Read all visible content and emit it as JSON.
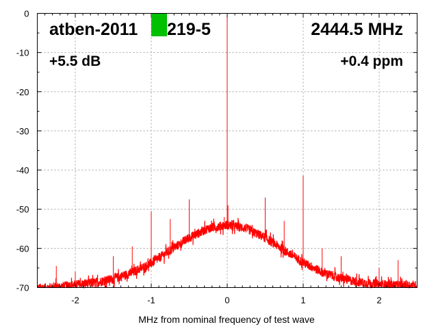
{
  "chart_data": {
    "type": "line",
    "title_left_parts": [
      "atben-2011",
      "219-5"
    ],
    "title_right": "2444.5 MHz",
    "annotation_left": "+5.5 dB",
    "annotation_right": "+0.4 ppm",
    "xlabel": "MHz from nominal frequency of test wave",
    "ylabel": "",
    "xlim": [
      -2.5,
      2.5
    ],
    "ylim": [
      -70,
      0
    ],
    "xticks": [
      -2,
      -1,
      0,
      1,
      2
    ],
    "yticks": [
      0,
      -10,
      -20,
      -30,
      -40,
      -50,
      -60,
      -70
    ],
    "grid": true,
    "series_color": "#ff0000",
    "redaction_color": "#00c000",
    "noise_envelope": {
      "x": [
        -2.5,
        -2.25,
        -2,
        -1.75,
        -1.5,
        -1.25,
        -1,
        -0.75,
        -0.5,
        -0.25,
        0,
        0.25,
        0.5,
        0.75,
        1,
        1.25,
        1.5,
        1.75,
        2,
        2.25,
        2.5
      ],
      "y": [
        -70.2,
        -69.9,
        -69.3,
        -68.8,
        -67.8,
        -66.2,
        -63.8,
        -60.5,
        -57.3,
        -54.9,
        -54,
        -54.9,
        -57.3,
        -60.5,
        -63.6,
        -66.1,
        -67.7,
        -68.7,
        -69.2,
        -69.4,
        -69.5
      ],
      "noise_db": 1.2
    },
    "spurs": [
      {
        "x": -2.25,
        "y": -64.5
      },
      {
        "x": -2.0,
        "y": -66
      },
      {
        "x": -1.5,
        "y": -62
      },
      {
        "x": -1.25,
        "y": -59.5
      },
      {
        "x": -1.0,
        "y": -50.5
      },
      {
        "x": -0.75,
        "y": -52.5
      },
      {
        "x": -0.5,
        "y": -47.5
      },
      {
        "x": -0.04,
        "y": -52
      },
      {
        "x": 0.0,
        "y": 0
      },
      {
        "x": 0.01,
        "y": -49
      },
      {
        "x": 0.5,
        "y": -47
      },
      {
        "x": 0.75,
        "y": -53
      },
      {
        "x": 1.0,
        "y": -41.5
      },
      {
        "x": 1.25,
        "y": -60
      },
      {
        "x": 1.5,
        "y": -62
      },
      {
        "x": 2.0,
        "y": -65
      },
      {
        "x": 2.25,
        "y": -63
      }
    ]
  }
}
